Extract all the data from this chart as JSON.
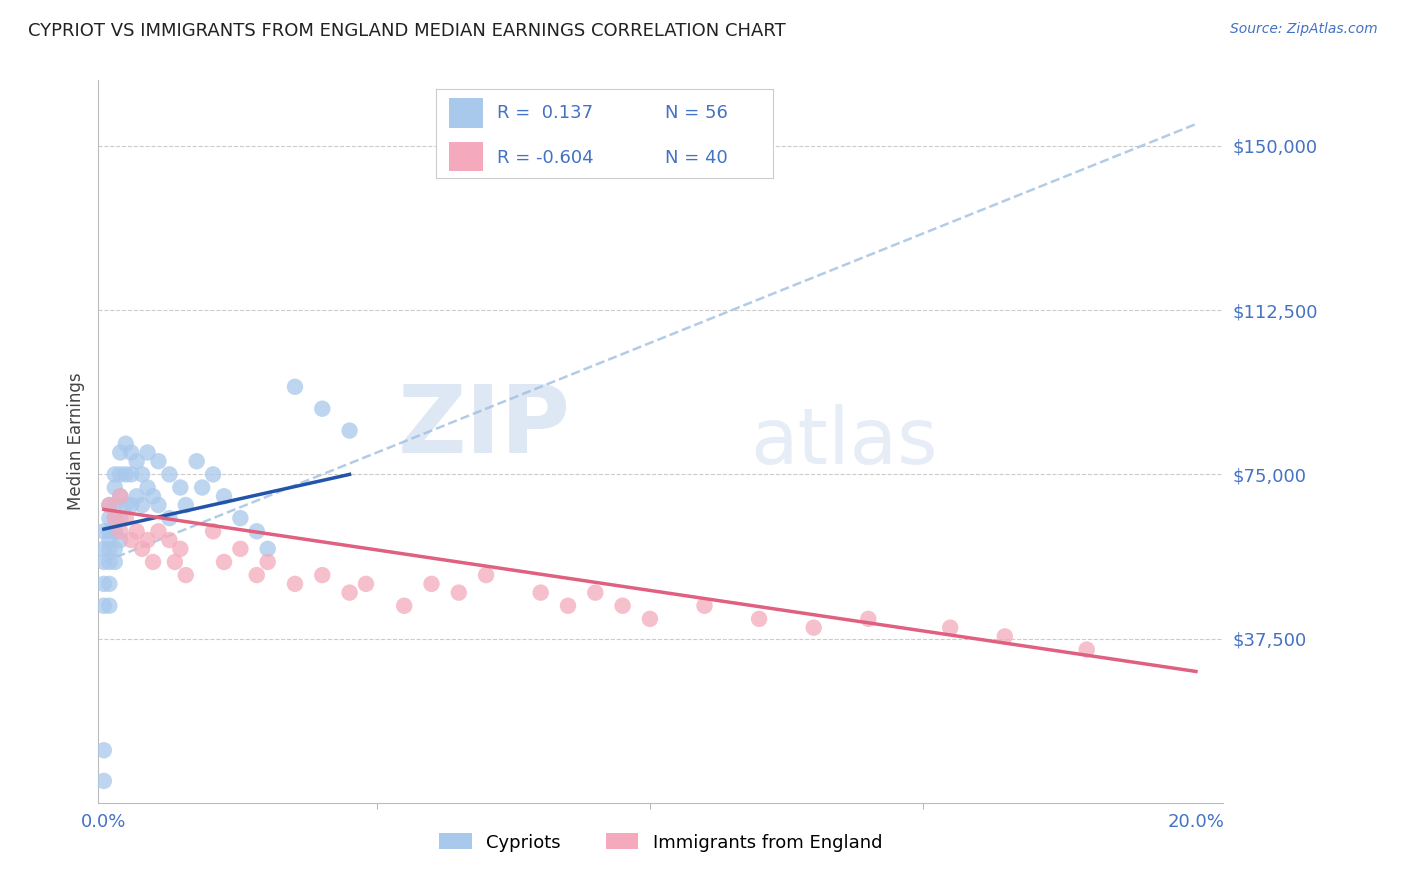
{
  "title": "CYPRIOT VS IMMIGRANTS FROM ENGLAND MEDIAN EARNINGS CORRELATION CHART",
  "source": "Source: ZipAtlas.com",
  "ylabel": "Median Earnings",
  "ytick_labels": [
    "$37,500",
    "$75,000",
    "$112,500",
    "$150,000"
  ],
  "ytick_values": [
    37500,
    75000,
    112500,
    150000
  ],
  "ylim": [
    0,
    165000
  ],
  "xlim": [
    -0.001,
    0.205
  ],
  "blue_R": 0.137,
  "blue_N": 56,
  "pink_R": -0.604,
  "pink_N": 40,
  "legend_label1": "Cypriots",
  "legend_label2": "Immigrants from England",
  "blue_color": "#A8C8EC",
  "pink_color": "#F4AABC",
  "blue_line_color": "#2255AA",
  "pink_line_color": "#E06080",
  "dash_line_color": "#A0C0E0",
  "background_color": "#FFFFFF",
  "watermark_zip": "ZIP",
  "watermark_atlas": "atlas",
  "blue_scatter_x": [
    0.0,
    0.0,
    0.0,
    0.0,
    0.0,
    0.0,
    0.0,
    0.001,
    0.001,
    0.001,
    0.001,
    0.001,
    0.001,
    0.001,
    0.001,
    0.002,
    0.002,
    0.002,
    0.002,
    0.002,
    0.002,
    0.002,
    0.003,
    0.003,
    0.003,
    0.003,
    0.003,
    0.004,
    0.004,
    0.004,
    0.005,
    0.005,
    0.005,
    0.006,
    0.006,
    0.007,
    0.007,
    0.008,
    0.008,
    0.009,
    0.01,
    0.01,
    0.012,
    0.012,
    0.014,
    0.015,
    0.017,
    0.018,
    0.02,
    0.022,
    0.025,
    0.028,
    0.03,
    0.035,
    0.04,
    0.045
  ],
  "blue_scatter_y": [
    62000,
    58000,
    55000,
    50000,
    45000,
    12000,
    5000,
    68000,
    65000,
    62000,
    60000,
    58000,
    55000,
    50000,
    45000,
    75000,
    72000,
    68000,
    65000,
    62000,
    58000,
    55000,
    80000,
    75000,
    70000,
    65000,
    60000,
    82000,
    75000,
    68000,
    80000,
    75000,
    68000,
    78000,
    70000,
    75000,
    68000,
    80000,
    72000,
    70000,
    78000,
    68000,
    75000,
    65000,
    72000,
    68000,
    78000,
    72000,
    75000,
    70000,
    65000,
    62000,
    58000,
    95000,
    90000,
    85000
  ],
  "pink_scatter_x": [
    0.001,
    0.002,
    0.003,
    0.003,
    0.004,
    0.005,
    0.006,
    0.007,
    0.008,
    0.009,
    0.01,
    0.012,
    0.013,
    0.014,
    0.015,
    0.02,
    0.022,
    0.025,
    0.028,
    0.03,
    0.035,
    0.04,
    0.045,
    0.048,
    0.055,
    0.06,
    0.065,
    0.07,
    0.08,
    0.085,
    0.09,
    0.095,
    0.1,
    0.11,
    0.12,
    0.13,
    0.14,
    0.155,
    0.165,
    0.18
  ],
  "pink_scatter_y": [
    68000,
    65000,
    70000,
    62000,
    65000,
    60000,
    62000,
    58000,
    60000,
    55000,
    62000,
    60000,
    55000,
    58000,
    52000,
    62000,
    55000,
    58000,
    52000,
    55000,
    50000,
    52000,
    48000,
    50000,
    45000,
    50000,
    48000,
    52000,
    48000,
    45000,
    48000,
    45000,
    42000,
    45000,
    42000,
    40000,
    42000,
    40000,
    38000,
    35000
  ],
  "blue_line_x0": 0.0,
  "blue_line_x1": 0.045,
  "blue_line_y0": 62500,
  "blue_line_y1": 75000,
  "pink_line_x0": 0.0,
  "pink_line_x1": 0.2,
  "pink_line_y0": 67000,
  "pink_line_y1": 30000,
  "dash_line_x0": 0.0,
  "dash_line_x1": 0.2,
  "dash_line_y0": 55000,
  "dash_line_y1": 155000
}
